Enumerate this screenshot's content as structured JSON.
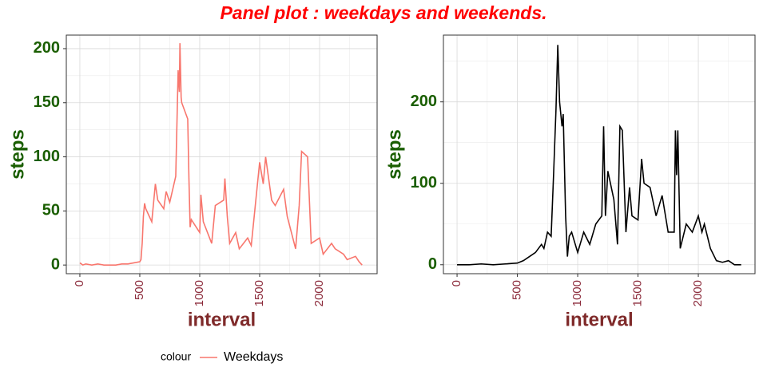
{
  "title": "Panel plot : weekdays and weekends.",
  "chart_data": [
    {
      "type": "line",
      "xlabel": "interval",
      "ylabel": "steps",
      "x": [
        0,
        25,
        50,
        100,
        150,
        200,
        250,
        300,
        350,
        400,
        450,
        500,
        510,
        520,
        530,
        540,
        550,
        600,
        630,
        650,
        700,
        720,
        750,
        800,
        820,
        830,
        835,
        840,
        845,
        850,
        900,
        910,
        920,
        930,
        1000,
        1010,
        1030,
        1100,
        1130,
        1200,
        1210,
        1230,
        1250,
        1300,
        1330,
        1400,
        1430,
        1500,
        1530,
        1550,
        1600,
        1630,
        1700,
        1730,
        1800,
        1830,
        1850,
        1900,
        1930,
        2000,
        2030,
        2100,
        2130,
        2200,
        2230,
        2300,
        2330,
        2355
      ],
      "series": [
        {
          "name": "Weekdays",
          "color": "#F8766D",
          "values": [
            2,
            0,
            1,
            0,
            1,
            0,
            0,
            0,
            1,
            1,
            2,
            3,
            5,
            20,
            45,
            57,
            52,
            40,
            75,
            60,
            52,
            68,
            58,
            82,
            180,
            160,
            205,
            180,
            155,
            150,
            135,
            80,
            35,
            42,
            30,
            65,
            40,
            20,
            55,
            60,
            80,
            45,
            20,
            30,
            15,
            25,
            18,
            95,
            75,
            100,
            60,
            55,
            70,
            45,
            15,
            55,
            105,
            100,
            20,
            25,
            10,
            20,
            15,
            10,
            5,
            8,
            3,
            0
          ]
        }
      ],
      "xlim": [
        -113,
        2480
      ],
      "ylim": [
        -8,
        212.5
      ],
      "xticks": [
        0,
        500,
        1000,
        1500,
        2000
      ],
      "yticks": [
        0,
        50,
        100,
        150,
        200
      ],
      "minor_xticks": [
        250,
        750,
        1250,
        1750,
        2250
      ],
      "minor_yticks": [
        25,
        75,
        125,
        175
      ],
      "grid": true,
      "legend_title": "colour",
      "legend_position": "bottom"
    },
    {
      "type": "line",
      "xlabel": "interval",
      "ylabel": "steps",
      "x": [
        0,
        100,
        200,
        300,
        400,
        500,
        550,
        600,
        650,
        700,
        720,
        750,
        780,
        800,
        820,
        835,
        850,
        870,
        880,
        900,
        915,
        930,
        950,
        1000,
        1050,
        1100,
        1150,
        1200,
        1215,
        1230,
        1250,
        1300,
        1330,
        1350,
        1370,
        1400,
        1430,
        1450,
        1500,
        1530,
        1550,
        1600,
        1650,
        1700,
        1750,
        1800,
        1810,
        1820,
        1830,
        1850,
        1900,
        1950,
        2000,
        2030,
        2050,
        2100,
        2150,
        2200,
        2250,
        2300,
        2355
      ],
      "series": [
        {
          "color": "#000000",
          "values": [
            0,
            0,
            1,
            0,
            1,
            2,
            5,
            10,
            15,
            25,
            20,
            40,
            35,
            110,
            190,
            270,
            200,
            170,
            185,
            60,
            10,
            35,
            40,
            15,
            40,
            25,
            50,
            60,
            170,
            60,
            115,
            80,
            25,
            170,
            165,
            40,
            95,
            60,
            55,
            130,
            100,
            95,
            60,
            85,
            40,
            40,
            165,
            110,
            165,
            20,
            50,
            40,
            60,
            40,
            50,
            20,
            5,
            3,
            5,
            0,
            0
          ]
        }
      ],
      "xlim": [
        -113,
        2470
      ],
      "ylim": [
        -11,
        282
      ],
      "xticks": [
        0,
        500,
        1000,
        1500,
        2000
      ],
      "yticks": [
        0,
        100,
        200
      ],
      "minor_xticks": [
        250,
        750,
        1250,
        1750,
        2250
      ],
      "minor_yticks": [
        50,
        150,
        250
      ],
      "grid": true
    }
  ]
}
